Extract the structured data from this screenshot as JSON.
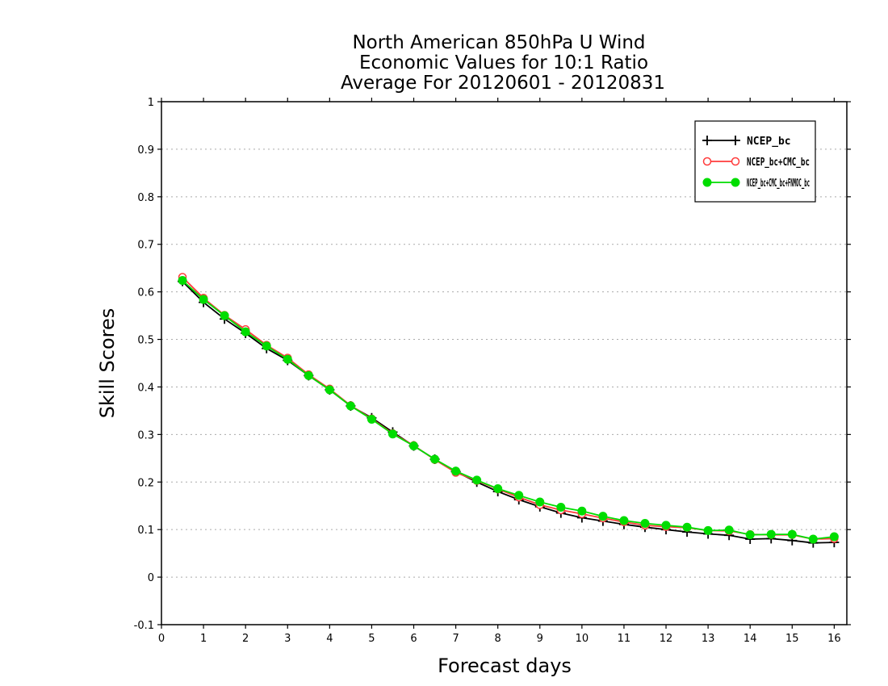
{
  "chart_data": {
    "type": "line",
    "title": [
      "North American 850hPa U Wind",
      "Economic Values for 10:1 Ratio",
      "Average For 20120601 - 20120831"
    ],
    "xlabel": "Forecast days",
    "ylabel": "Skill Scores",
    "xlim": [
      0,
      16.3
    ],
    "ylim": [
      -0.1,
      1.0
    ],
    "xticks": [
      0,
      1,
      2,
      3,
      4,
      5,
      6,
      7,
      8,
      9,
      10,
      11,
      12,
      13,
      14,
      15,
      16
    ],
    "yticks": [
      -0.1,
      0,
      0.1,
      0.2,
      0.3,
      0.4,
      0.5,
      0.6,
      0.7,
      0.8,
      0.9,
      1
    ],
    "ytick_labels": [
      "-0.1",
      "0",
      "0.1",
      "0.2",
      "0.3",
      "0.4",
      "0.5",
      "0.6",
      "0.7",
      "0.8",
      "0.9",
      "1"
    ],
    "grid": "horizontal-dotted",
    "legend_position": "top-right",
    "x": [
      0.5,
      1,
      1.5,
      2,
      2.5,
      3,
      3.5,
      4,
      4.5,
      5,
      5.5,
      6,
      6.5,
      7,
      7.5,
      8,
      8.5,
      9,
      9.5,
      10,
      10.5,
      11,
      11.5,
      12,
      12.5,
      13,
      13.5,
      14,
      14.5,
      15,
      15.5,
      16
    ],
    "series": [
      {
        "name": "NCEP_bc",
        "color": "#000000",
        "marker": "plus",
        "values": [
          0.622,
          0.578,
          0.543,
          0.513,
          0.481,
          0.456,
          0.424,
          0.394,
          0.36,
          0.335,
          0.305,
          0.276,
          0.248,
          0.222,
          0.2,
          0.18,
          0.163,
          0.148,
          0.135,
          0.125,
          0.118,
          0.111,
          0.105,
          0.1,
          0.095,
          0.091,
          0.088,
          0.08,
          0.081,
          0.077,
          0.072,
          0.073
        ]
      },
      {
        "name": "NCEP_bc+CMC_bc",
        "color": "#ff3b3b",
        "marker": "open-circle",
        "values": [
          0.631,
          0.587,
          0.551,
          0.521,
          0.488,
          0.461,
          0.426,
          0.396,
          0.361,
          0.333,
          0.302,
          0.277,
          0.247,
          0.22,
          0.203,
          0.185,
          0.168,
          0.152,
          0.141,
          0.133,
          0.124,
          0.116,
          0.109,
          0.106,
          0.104,
          0.098,
          0.097,
          0.09,
          0.089,
          0.089,
          0.08,
          0.081
        ]
      },
      {
        "name": "NCEP_bc+CMC_bc+FNMOC_bc",
        "color": "#00dd00",
        "marker": "filled-circle",
        "values": [
          0.624,
          0.584,
          0.55,
          0.516,
          0.486,
          0.458,
          0.424,
          0.394,
          0.36,
          0.332,
          0.301,
          0.276,
          0.248,
          0.223,
          0.204,
          0.186,
          0.172,
          0.158,
          0.147,
          0.139,
          0.128,
          0.119,
          0.113,
          0.109,
          0.105,
          0.098,
          0.099,
          0.089,
          0.09,
          0.09,
          0.08,
          0.085
        ]
      }
    ]
  }
}
